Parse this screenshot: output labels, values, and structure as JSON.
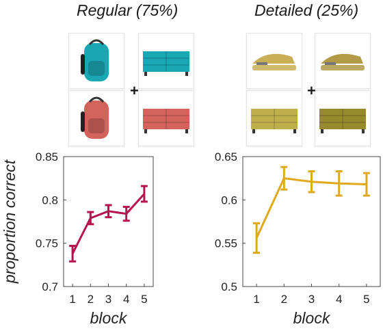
{
  "panels": [
    {
      "title": "Regular (75%)",
      "color": "#b5124e",
      "images": [
        {
          "icon": "backpack-icon",
          "color": "#1aa7b4"
        },
        {
          "icon": "dresser-icon",
          "color": "#1aa7b4"
        },
        {
          "icon": "backpack-icon",
          "color": "#d2645c"
        },
        {
          "icon": "dresser-icon",
          "color": "#d2645c"
        }
      ]
    },
    {
      "title": "Detailed (25%)",
      "color": "#e0a81c",
      "images": [
        {
          "icon": "stapler-icon",
          "color": "#c8ae55"
        },
        {
          "icon": "stapler-icon",
          "color": "#b29a46"
        },
        {
          "icon": "dresser-icon",
          "color": "#bfae4c"
        },
        {
          "icon": "dresser-icon",
          "color": "#978a2c"
        }
      ]
    }
  ],
  "plus_symbol": "+",
  "chart_data": [
    {
      "type": "line",
      "x": [
        1,
        2,
        3,
        4,
        5
      ],
      "y": [
        0.738,
        0.779,
        0.787,
        0.784,
        0.807
      ],
      "error": [
        0.009,
        0.007,
        0.007,
        0.008,
        0.009
      ],
      "xlabel": "block",
      "ylabel": "proportion correct",
      "xlim": [
        0.5,
        5.5
      ],
      "ylim": [
        0.7,
        0.85
      ],
      "xticks": [
        "1",
        "2",
        "3",
        "4",
        "5"
      ],
      "yticks": [
        "0.7",
        "0.75",
        "0.8",
        "0.85"
      ],
      "grid": false
    },
    {
      "type": "line",
      "x": [
        1,
        2,
        3,
        4,
        5
      ],
      "y": [
        0.556,
        0.625,
        0.621,
        0.619,
        0.618
      ],
      "error": [
        0.017,
        0.013,
        0.012,
        0.014,
        0.013
      ],
      "xlabel": "block",
      "ylabel": "",
      "xlim": [
        0.5,
        5.5
      ],
      "ylim": [
        0.5,
        0.65
      ],
      "xticks": [
        "1",
        "2",
        "3",
        "4",
        "5"
      ],
      "yticks": [
        "0.5",
        "0.55",
        "0.6",
        "0.65"
      ],
      "grid": false
    }
  ]
}
